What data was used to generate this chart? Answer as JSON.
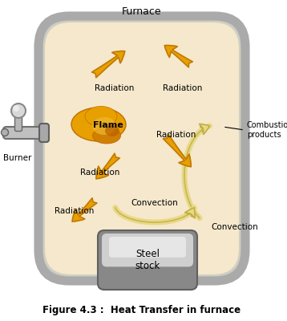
{
  "title_top": "Furnace",
  "title_bottom": "Figure 4.3 :  Heat Transfer in furnace",
  "furnace_color": "#f5e8cc",
  "furnace_border_outer": "#b0b0b0",
  "furnace_border_inner": "#d8d8d8",
  "arrow_color": "#e8a000",
  "arrow_outline": "#c07800",
  "convection_color": "#e8d888",
  "convection_outline": "#c0b040",
  "steel_mid": "#b8b8b8",
  "steel_light": "#e8e8e8",
  "steel_dark": "#787878",
  "burner_color": "#c0c0c0",
  "background_color": "#ffffff",
  "labels": {
    "radiation_ul": "Radiation",
    "radiation_ur": "Radiation",
    "radiation_mid": "Radiation",
    "radiation_lower": "Radiation",
    "radiation_bottom": "Radiation",
    "flame": "Flame",
    "burner": "Burner",
    "combustion": "Combustion\nproducts",
    "convection_curve": "Convection",
    "convection_right": "Convection",
    "steel": "Steel\nstock"
  }
}
